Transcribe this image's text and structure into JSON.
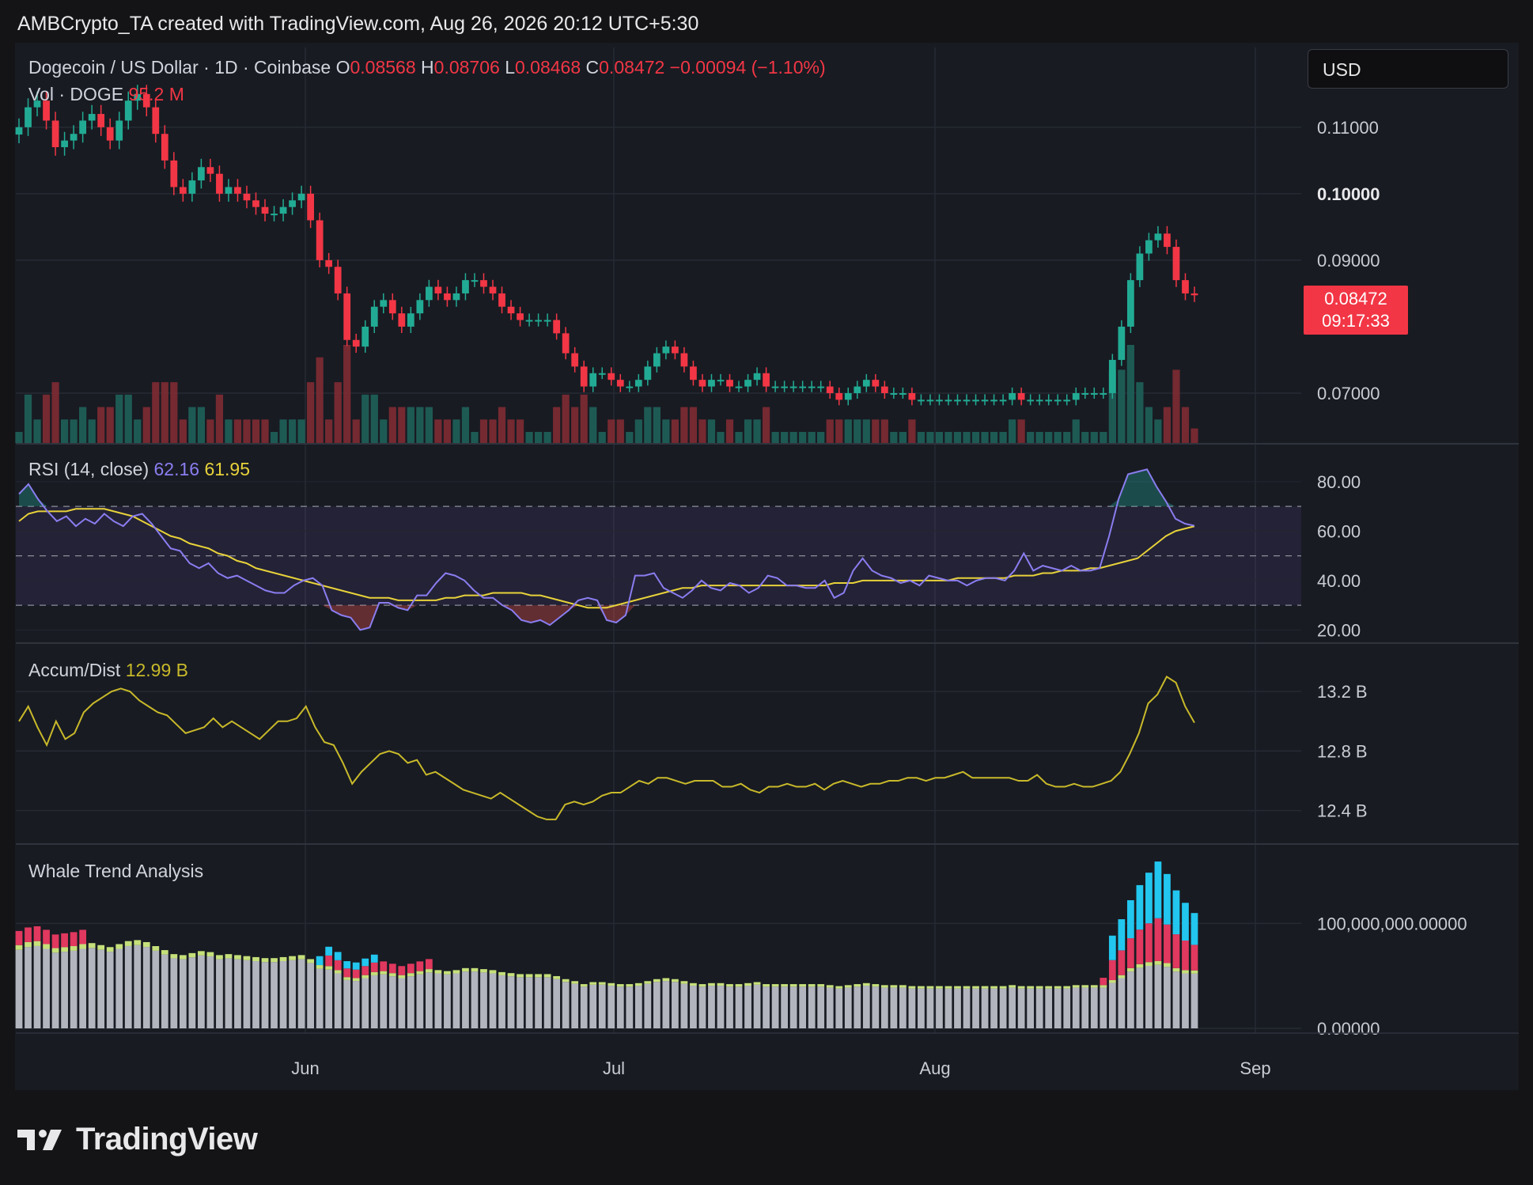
{
  "header": {
    "attribution": "AMBCrypto_TA created with TradingView.com, Aug 26, 2026 20:12 UTC+5:30"
  },
  "price_legend": {
    "symbol": "Dogecoin / US Dollar · 1D · Coinbase",
    "o_label": "O",
    "o_value": "0.08568",
    "h_label": "H",
    "h_value": "0.08706",
    "l_label": "L",
    "l_value": "0.08468",
    "c_label": "C",
    "c_value": "0.08472",
    "change": "−0.00094 (−1.10%)"
  },
  "volume_legend": {
    "label": "Vol · DOGE",
    "value": "95.2 M"
  },
  "rsi_legend": {
    "label": "RSI (14, close)",
    "rsi": "62.16",
    "ma": "61.95"
  },
  "ad_legend": {
    "label": "Accum/Dist",
    "value": "12.99 B"
  },
  "whale_legend": {
    "label": "Whale Trend Analysis"
  },
  "currency_selector": "USD",
  "price_tag": {
    "price": "0.08472",
    "countdown": "09:17:33"
  },
  "x_axis": [
    "Jun",
    "Jul",
    "Aug",
    "Sep"
  ],
  "price_axis": [
    "0.11000",
    "0.10000",
    "0.09000",
    "0.07000"
  ],
  "rsi_axis": [
    "80.00",
    "60.00",
    "40.00",
    "20.00"
  ],
  "ad_axis": [
    "13.2 B",
    "12.8 B",
    "12.4 B"
  ],
  "whale_axis": [
    "100,000,000.00000",
    "0.00000"
  ],
  "colors": {
    "up": "#22ab94",
    "down": "#f23645",
    "rsi": "#8a7df0",
    "rsi_ma": "#e7d23a",
    "ad": "#c8b92a",
    "whale_gray": "#b2b5be",
    "whale_green": "#c5e07a",
    "whale_red": "#e0385e",
    "whale_cyan": "#22c6ee"
  },
  "footer": {
    "brand": "TradingView"
  },
  "chart_data": [
    {
      "type": "candlestick",
      "title": "Dogecoin / US Dollar · 1D · Coinbase",
      "ylim": [
        0.0625,
        0.122
      ],
      "y_ticks": [
        0.07,
        0.09,
        0.1,
        0.11
      ],
      "x_ticks": [
        "Jun",
        "Jul",
        "Aug",
        "Sep"
      ],
      "last_price": 0.08472,
      "closes": [
        0.11,
        0.113,
        0.114,
        0.111,
        0.107,
        0.108,
        0.109,
        0.111,
        0.112,
        0.11,
        0.108,
        0.111,
        0.114,
        0.115,
        0.113,
        0.109,
        0.105,
        0.101,
        0.1,
        0.102,
        0.104,
        0.103,
        0.1,
        0.101,
        0.1,
        0.099,
        0.098,
        0.097,
        0.097,
        0.098,
        0.099,
        0.1,
        0.096,
        0.09,
        0.089,
        0.085,
        0.078,
        0.077,
        0.08,
        0.083,
        0.084,
        0.082,
        0.08,
        0.082,
        0.084,
        0.086,
        0.085,
        0.084,
        0.085,
        0.087,
        0.087,
        0.086,
        0.085,
        0.083,
        0.082,
        0.081,
        0.081,
        0.081,
        0.081,
        0.079,
        0.076,
        0.074,
        0.071,
        0.073,
        0.073,
        0.072,
        0.071,
        0.071,
        0.072,
        0.074,
        0.076,
        0.077,
        0.076,
        0.074,
        0.072,
        0.071,
        0.072,
        0.072,
        0.071,
        0.071,
        0.072,
        0.073,
        0.071,
        0.071,
        0.071,
        0.071,
        0.071,
        0.071,
        0.071,
        0.07,
        0.069,
        0.07,
        0.071,
        0.072,
        0.071,
        0.07,
        0.07,
        0.07,
        0.069,
        0.069,
        0.069,
        0.069,
        0.069,
        0.069,
        0.069,
        0.069,
        0.069,
        0.069,
        0.069,
        0.07,
        0.069,
        0.069,
        0.069,
        0.069,
        0.069,
        0.069,
        0.07,
        0.07,
        0.07,
        0.07,
        0.075,
        0.08,
        0.087,
        0.091,
        0.093,
        0.094,
        0.092,
        0.087,
        0.085,
        0.08472
      ],
      "volume_label": "Vol · DOGE",
      "volume_last": "95.2 M"
    },
    {
      "type": "line",
      "title": "RSI (14, close)",
      "ylim": [
        15,
        95
      ],
      "y_ticks": [
        20,
        40,
        60,
        80
      ],
      "bands": {
        "upper": 70,
        "middle": 50,
        "lower": 30
      },
      "series": [
        {
          "name": "RSI",
          "last": 62.16,
          "values": [
            75,
            79,
            73,
            68,
            64,
            66,
            62,
            65,
            63,
            67,
            64,
            62,
            66,
            67,
            63,
            58,
            53,
            52,
            47,
            45,
            47,
            43,
            41,
            42,
            40,
            38,
            36,
            35,
            35,
            38,
            40,
            41,
            38,
            28,
            26,
            25,
            20,
            21,
            31,
            31,
            29,
            28,
            34,
            34,
            39,
            43,
            42,
            40,
            36,
            33,
            33,
            30,
            28,
            24,
            23,
            24,
            22,
            25,
            28,
            32,
            33,
            32,
            24,
            23,
            26,
            42,
            42,
            43,
            37,
            35,
            33,
            36,
            40,
            37,
            36,
            39,
            38,
            35,
            37,
            42,
            41,
            38,
            38,
            37,
            37,
            40,
            33,
            35,
            44,
            49,
            44,
            42,
            41,
            39,
            40,
            38,
            42,
            41,
            40,
            40,
            38,
            40,
            41,
            41,
            40,
            44,
            51,
            44,
            46,
            45,
            44,
            46,
            44,
            44,
            45,
            58,
            73,
            83,
            84,
            85,
            78,
            72,
            65,
            63,
            62.16
          ]
        },
        {
          "name": "RSI MA",
          "last": 61.95,
          "values": [
            64,
            67,
            68,
            68,
            68,
            68,
            69,
            69,
            69,
            69,
            68,
            67,
            66,
            64,
            62,
            60,
            58,
            57,
            55,
            54,
            53,
            51,
            50,
            48,
            47,
            45,
            44,
            43,
            42,
            41,
            40,
            39,
            38,
            37,
            36,
            35,
            34,
            33,
            33,
            33,
            32,
            32,
            32,
            32,
            32,
            33,
            33,
            34,
            34,
            34,
            35,
            35,
            35,
            35,
            34,
            34,
            33,
            32,
            31,
            30,
            29,
            29,
            29,
            30,
            31,
            32,
            33,
            34,
            35,
            36,
            37,
            37,
            38,
            38,
            38,
            38,
            38,
            38,
            38,
            38,
            38,
            38,
            38,
            38,
            38,
            38,
            39,
            39,
            39,
            40,
            40,
            40,
            40,
            40,
            40,
            40,
            40,
            40,
            40,
            41,
            41,
            41,
            41,
            41,
            41,
            42,
            42,
            42,
            43,
            43,
            44,
            44,
            44,
            45,
            45,
            46,
            47,
            48,
            49,
            52,
            55,
            58,
            60,
            61,
            61.95
          ]
        }
      ]
    },
    {
      "type": "line",
      "title": "Accum/Dist",
      "ylim": [
        12.18,
        13.52
      ],
      "y_ticks": [
        12.4,
        12.8,
        13.2
      ],
      "series": [
        {
          "name": "Accum/Dist",
          "last": 12.99,
          "values": [
            13.0,
            13.1,
            12.96,
            12.84,
            13.0,
            12.88,
            12.92,
            13.06,
            13.12,
            13.16,
            13.2,
            13.22,
            13.2,
            13.14,
            13.1,
            13.06,
            13.04,
            12.98,
            12.92,
            12.94,
            12.96,
            13.02,
            12.96,
            13.0,
            12.96,
            12.92,
            12.88,
            12.94,
            13.0,
            13.0,
            13.02,
            13.1,
            12.96,
            12.86,
            12.84,
            12.72,
            12.58,
            12.66,
            12.72,
            12.78,
            12.8,
            12.78,
            12.72,
            12.74,
            12.64,
            12.66,
            12.62,
            12.58,
            12.54,
            12.52,
            12.5,
            12.48,
            12.52,
            12.48,
            12.44,
            12.4,
            12.36,
            12.34,
            12.34,
            12.44,
            12.46,
            12.44,
            12.46,
            12.5,
            12.52,
            12.52,
            12.56,
            12.6,
            12.58,
            12.62,
            12.62,
            12.6,
            12.58,
            12.6,
            12.6,
            12.6,
            12.56,
            12.56,
            12.58,
            12.54,
            12.52,
            12.56,
            12.56,
            12.58,
            12.56,
            12.56,
            12.58,
            12.54,
            12.58,
            12.6,
            12.58,
            12.56,
            12.58,
            12.58,
            12.6,
            12.6,
            12.62,
            12.62,
            12.6,
            12.62,
            12.62,
            12.64,
            12.66,
            12.62,
            12.62,
            12.62,
            12.62,
            12.62,
            12.6,
            12.6,
            12.64,
            12.58,
            12.56,
            12.56,
            12.58,
            12.56,
            12.56,
            12.58,
            12.6,
            12.66,
            12.78,
            12.92,
            13.12,
            13.18,
            13.3,
            13.26,
            13.1,
            12.99
          ]
        }
      ]
    },
    {
      "type": "bar",
      "title": "Whale Trend Analysis",
      "ylim": [
        0,
        175000000
      ],
      "y_ticks": [
        0,
        100000000
      ],
      "stacked": true,
      "series_total_last": 123000000
    }
  ]
}
